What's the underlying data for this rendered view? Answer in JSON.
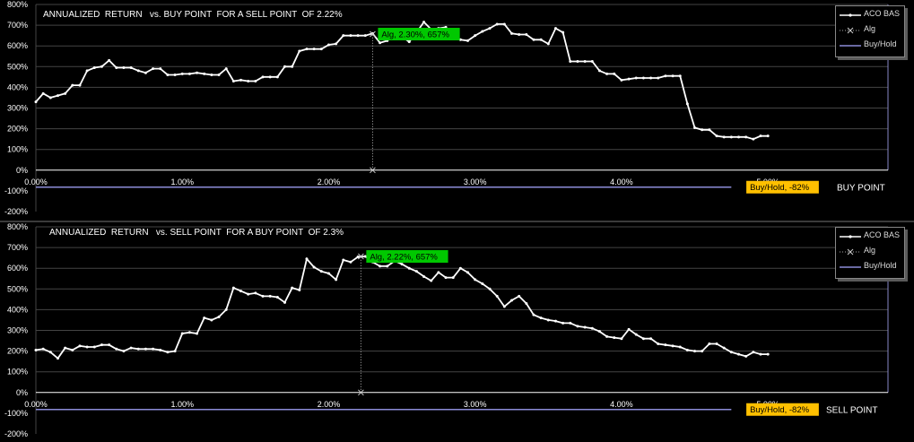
{
  "colors": {
    "panel_bg": "#000000",
    "line": "#ffffff",
    "grid": "#444444",
    "alg_label": "#00c800",
    "buyhold_label": "#ffc000",
    "buyhold_line": "#8c8cd8",
    "axis_text": "#ffffff"
  },
  "charts": [
    {
      "chart_data": {
        "type": "line",
        "title": "ANNUALIZED  RETURN   vs. BUY POINT  FOR A SELL POINT  OF 2.22%",
        "xlabel": "BUY POINT",
        "ylabel": "",
        "xlim": [
          0,
          5.82
        ],
        "ylim": [
          -200,
          800
        ],
        "x_ticks": [
          0,
          1,
          2,
          3,
          4,
          5
        ],
        "x_tick_labels": [
          "0.00%",
          "1.00%",
          "2.00%",
          "3.00%",
          "4.00%",
          "5.00%"
        ],
        "y_ticks": [
          -200,
          -100,
          0,
          100,
          200,
          300,
          400,
          500,
          600,
          700,
          800
        ],
        "y_tick_labels": [
          "-200%",
          "-100%",
          "0%",
          "100%",
          "200%",
          "300%",
          "400%",
          "500%",
          "600%",
          "700%",
          "800%"
        ],
        "legend": {
          "position": "top-right",
          "entries": [
            "ACO BAS",
            "Alg",
            "Buy/Hold"
          ]
        },
        "series": [
          {
            "name": "ACO BAS",
            "x": [
              0,
              0.05,
              0.1,
              0.15,
              0.2,
              0.25,
              0.3,
              0.35,
              0.4,
              0.45,
              0.5,
              0.55,
              0.6,
              0.65,
              0.7,
              0.75,
              0.8,
              0.85,
              0.9,
              0.95,
              1.0,
              1.05,
              1.1,
              1.15,
              1.2,
              1.25,
              1.3,
              1.35,
              1.4,
              1.45,
              1.5,
              1.55,
              1.6,
              1.65,
              1.7,
              1.75,
              1.8,
              1.85,
              1.9,
              1.95,
              2.0,
              2.05,
              2.1,
              2.15,
              2.2,
              2.25,
              2.3,
              2.35,
              2.4,
              2.45,
              2.5,
              2.55,
              2.6,
              2.65,
              2.7,
              2.75,
              2.8,
              2.85,
              2.9,
              2.95,
              3.0,
              3.05,
              3.1,
              3.15,
              3.2,
              3.25,
              3.3,
              3.35,
              3.4,
              3.45,
              3.5,
              3.55,
              3.6,
              3.65,
              3.7,
              3.75,
              3.8,
              3.85,
              3.9,
              3.95,
              4.0,
              4.05,
              4.1,
              4.15,
              4.2,
              4.25,
              4.3,
              4.35,
              4.4,
              4.45,
              4.5,
              4.55,
              4.6,
              4.65,
              4.7,
              4.75,
              4.8,
              4.85,
              4.9,
              4.95,
              5.0
            ],
            "y": [
              330,
              370,
              350,
              360,
              370,
              410,
              410,
              480,
              495,
              500,
              530,
              495,
              495,
              495,
              480,
              470,
              490,
              490,
              460,
              460,
              465,
              465,
              470,
              465,
              460,
              460,
              490,
              430,
              435,
              430,
              430,
              450,
              450,
              450,
              500,
              500,
              575,
              585,
              585,
              585,
              605,
              610,
              650,
              650,
              650,
              650,
              660,
              615,
              625,
              660,
              645,
              620,
              665,
              715,
              680,
              685,
              690,
              645,
              630,
              625,
              650,
              670,
              685,
              705,
              705,
              660,
              655,
              655,
              630,
              630,
              610,
              685,
              665,
              525,
              525,
              525,
              525,
              480,
              465,
              465,
              435,
              440,
              445,
              445,
              445,
              445,
              455,
              455,
              455,
              320,
              205,
              195,
              195,
              165,
              160,
              160,
              160,
              160,
              150,
              165,
              165
            ]
          },
          {
            "name": "Alg",
            "x": [
              2.3,
              2.3
            ],
            "y": [
              0,
              657
            ]
          },
          {
            "name": "Buy/Hold",
            "x": [
              0,
              4.75
            ],
            "y": [
              -82,
              -82
            ]
          }
        ],
        "annotations": [
          {
            "text": "Alg, 2.30%, 657%",
            "x": 2.3,
            "y": 657,
            "kind": "alg"
          },
          {
            "text": "Buy/Hold, -82%",
            "x": 5.1,
            "y": -82,
            "kind": "buyhold"
          }
        ]
      }
    },
    {
      "chart_data": {
        "type": "line",
        "title": "ANNUALIZED  RETURN   vs. SELL POINT  FOR A BUY POINT  OF 2.3%",
        "xlabel": "SELL POINT",
        "ylabel": "",
        "xlim": [
          0,
          5.82
        ],
        "ylim": [
          -200,
          800
        ],
        "x_ticks": [
          0,
          1,
          2,
          3,
          4,
          5
        ],
        "x_tick_labels": [
          "0.00%",
          "1.00%",
          "2.00%",
          "3.00%",
          "4.00%",
          "5.00%"
        ],
        "y_ticks": [
          -200,
          -100,
          0,
          100,
          200,
          300,
          400,
          500,
          600,
          700,
          800
        ],
        "y_tick_labels": [
          "-200%",
          "-100%",
          "0%",
          "100%",
          "200%",
          "300%",
          "400%",
          "500%",
          "600%",
          "700%",
          "800%"
        ],
        "legend": {
          "position": "top-right",
          "entries": [
            "ACO BAS",
            "Alg",
            "Buy/Hold"
          ]
        },
        "series": [
          {
            "name": "ACO BAS",
            "x": [
              0,
              0.05,
              0.1,
              0.15,
              0.2,
              0.25,
              0.3,
              0.35,
              0.4,
              0.45,
              0.5,
              0.55,
              0.6,
              0.65,
              0.7,
              0.75,
              0.8,
              0.85,
              0.9,
              0.95,
              1.0,
              1.05,
              1.1,
              1.15,
              1.2,
              1.25,
              1.3,
              1.35,
              1.4,
              1.45,
              1.5,
              1.55,
              1.6,
              1.65,
              1.7,
              1.75,
              1.8,
              1.85,
              1.9,
              1.95,
              2.0,
              2.05,
              2.1,
              2.15,
              2.2,
              2.25,
              2.3,
              2.35,
              2.4,
              2.45,
              2.5,
              2.55,
              2.6,
              2.65,
              2.7,
              2.75,
              2.8,
              2.85,
              2.9,
              2.95,
              3.0,
              3.05,
              3.1,
              3.15,
              3.2,
              3.25,
              3.3,
              3.35,
              3.4,
              3.45,
              3.5,
              3.55,
              3.6,
              3.65,
              3.7,
              3.75,
              3.8,
              3.85,
              3.9,
              3.95,
              4.0,
              4.05,
              4.1,
              4.15,
              4.2,
              4.25,
              4.3,
              4.35,
              4.4,
              4.45,
              4.5,
              4.55,
              4.6,
              4.65,
              4.7,
              4.75,
              4.8,
              4.85,
              4.9,
              4.95,
              5.0
            ],
            "y": [
              205,
              210,
              195,
              165,
              215,
              205,
              225,
              220,
              220,
              230,
              230,
              210,
              200,
              215,
              210,
              210,
              210,
              205,
              195,
              200,
              285,
              290,
              285,
              360,
              350,
              365,
              400,
              505,
              490,
              475,
              480,
              465,
              465,
              460,
              435,
              505,
              495,
              645,
              605,
              585,
              575,
              545,
              640,
              630,
              655,
              657,
              630,
              610,
              610,
              635,
              620,
              600,
              585,
              560,
              540,
              580,
              555,
              555,
              600,
              580,
              545,
              525,
              500,
              465,
              415,
              445,
              465,
              430,
              375,
              360,
              350,
              345,
              335,
              335,
              320,
              315,
              310,
              295,
              270,
              265,
              260,
              305,
              280,
              260,
              260,
              235,
              230,
              225,
              220,
              205,
              200,
              200,
              235,
              235,
              215,
              195,
              185,
              175,
              195,
              185,
              185
            ]
          },
          {
            "name": "Alg",
            "x": [
              2.22,
              2.22
            ],
            "y": [
              0,
              657
            ]
          },
          {
            "name": "Buy/Hold",
            "x": [
              0,
              4.75
            ],
            "y": [
              -82,
              -82
            ]
          }
        ],
        "annotations": [
          {
            "text": "Alg, 2.22%, 657%",
            "x": 2.22,
            "y": 657,
            "kind": "alg"
          },
          {
            "text": "Buy/Hold, -82%",
            "x": 5.1,
            "y": -82,
            "kind": "buyhold"
          }
        ]
      }
    }
  ]
}
